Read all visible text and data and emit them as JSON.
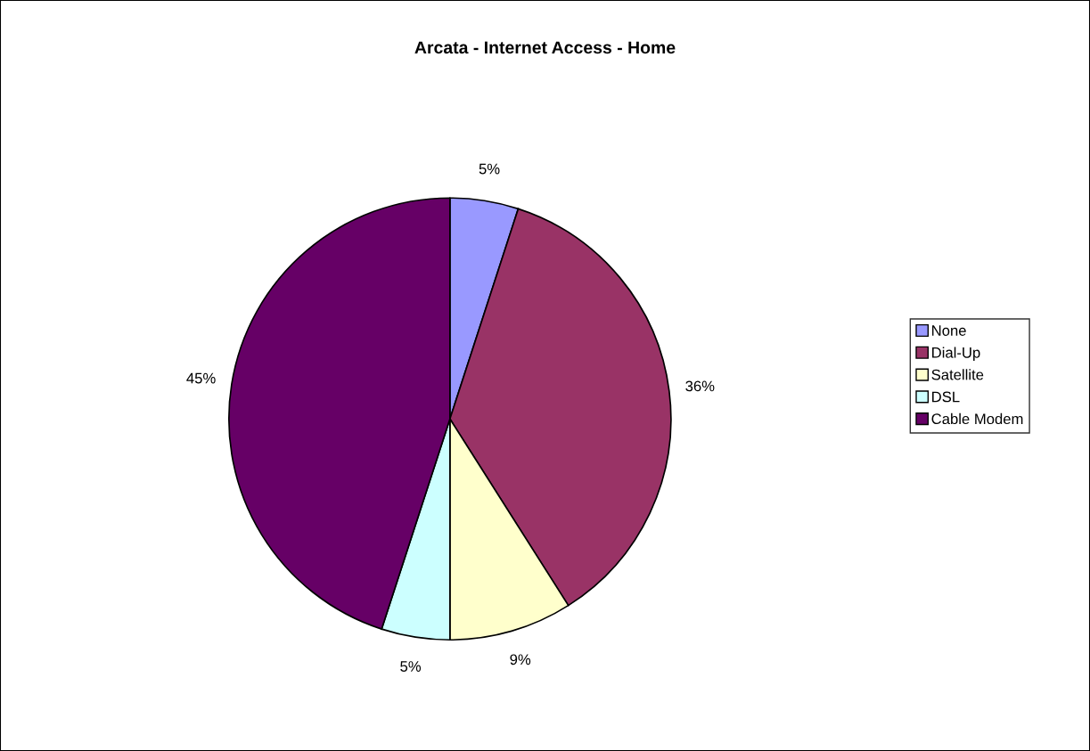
{
  "chart_data": {
    "type": "pie",
    "title": "Arcata - Internet Access - Home",
    "categories": [
      "None",
      "Dial-Up",
      "Satellite",
      "DSL",
      "Cable Modem"
    ],
    "values": [
      5,
      36,
      9,
      5,
      45
    ],
    "colors": [
      "#9999ff",
      "#993366",
      "#ffffcc",
      "#ccffff",
      "#660066"
    ],
    "value_labels": [
      "5%",
      "36%",
      "9%",
      "5%",
      "45%"
    ],
    "legend": "right"
  }
}
